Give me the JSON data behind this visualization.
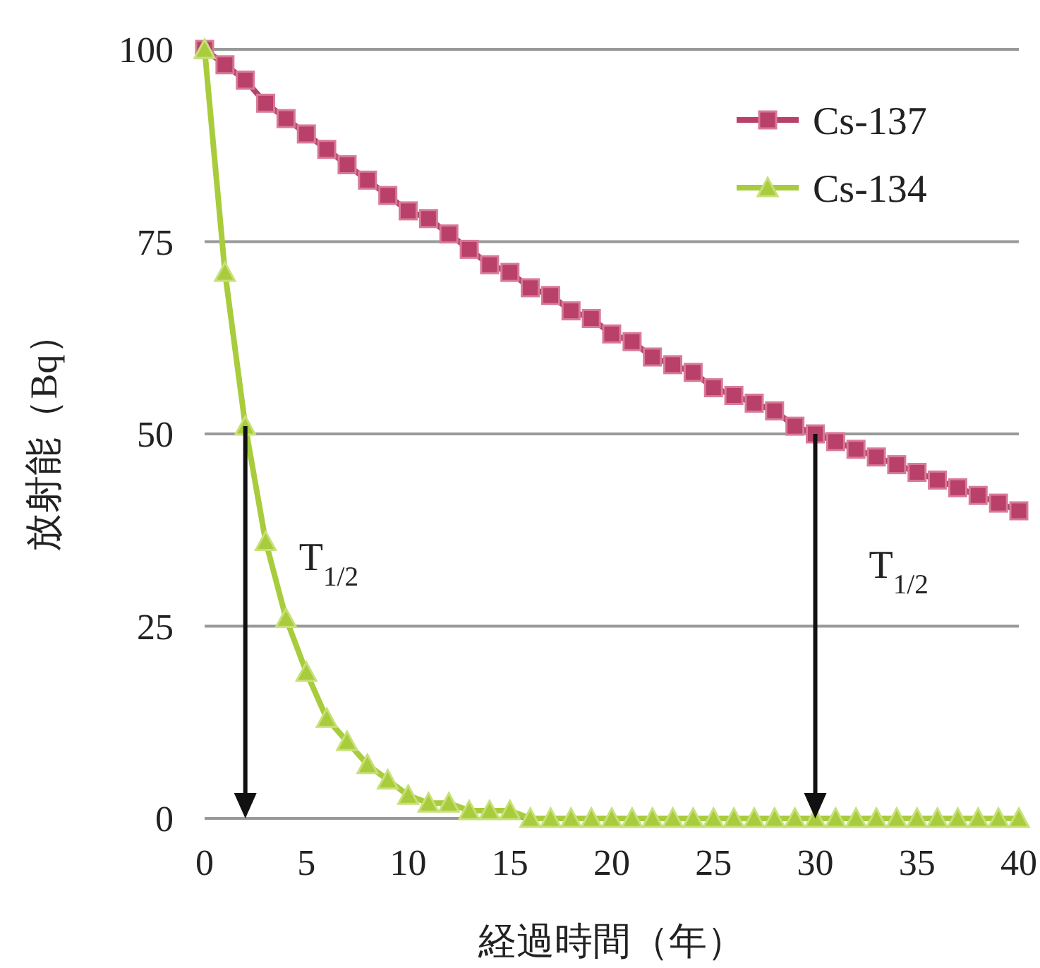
{
  "chart_data": {
    "type": "line",
    "xlabel": "経過時間（年）",
    "ylabel": "放射能（Bq）",
    "x": [
      0,
      1,
      2,
      3,
      4,
      5,
      6,
      7,
      8,
      9,
      10,
      11,
      12,
      13,
      14,
      15,
      16,
      17,
      18,
      19,
      20,
      21,
      22,
      23,
      24,
      25,
      26,
      27,
      28,
      29,
      30,
      31,
      32,
      33,
      34,
      35,
      36,
      37,
      38,
      39,
      40
    ],
    "series": [
      {
        "name": "Cs-137",
        "color": "#b8406a",
        "marker": "square",
        "values": [
          100,
          98,
          96,
          93,
          91,
          89,
          87,
          85,
          83,
          81,
          79,
          78,
          76,
          74,
          72,
          71,
          69,
          68,
          66,
          65,
          63,
          62,
          60,
          59,
          58,
          56,
          55,
          54,
          53,
          51,
          50,
          49,
          48,
          47,
          46,
          45,
          44,
          43,
          42,
          41,
          40
        ]
      },
      {
        "name": "Cs-134",
        "color": "#a8cc3c",
        "marker": "triangle",
        "values": [
          100,
          71,
          51,
          36,
          26,
          19,
          13,
          10,
          7,
          5,
          3,
          2,
          2,
          1,
          1,
          1,
          0,
          0,
          0,
          0,
          0,
          0,
          0,
          0,
          0,
          0,
          0,
          0,
          0,
          0,
          0,
          0,
          0,
          0,
          0,
          0,
          0,
          0,
          0,
          0,
          0
        ]
      }
    ],
    "xlim": [
      0,
      40
    ],
    "ylim": [
      0,
      100
    ],
    "xticks": [
      0,
      5,
      10,
      15,
      20,
      25,
      30,
      35,
      40
    ],
    "yticks": [
      0,
      25,
      50,
      75,
      100
    ],
    "grid": "y",
    "legend": "top right",
    "line_style": "solid",
    "annotations": [
      "T$_{1/2}$",
      "T$_{1/2}$"
    ]
  }
}
